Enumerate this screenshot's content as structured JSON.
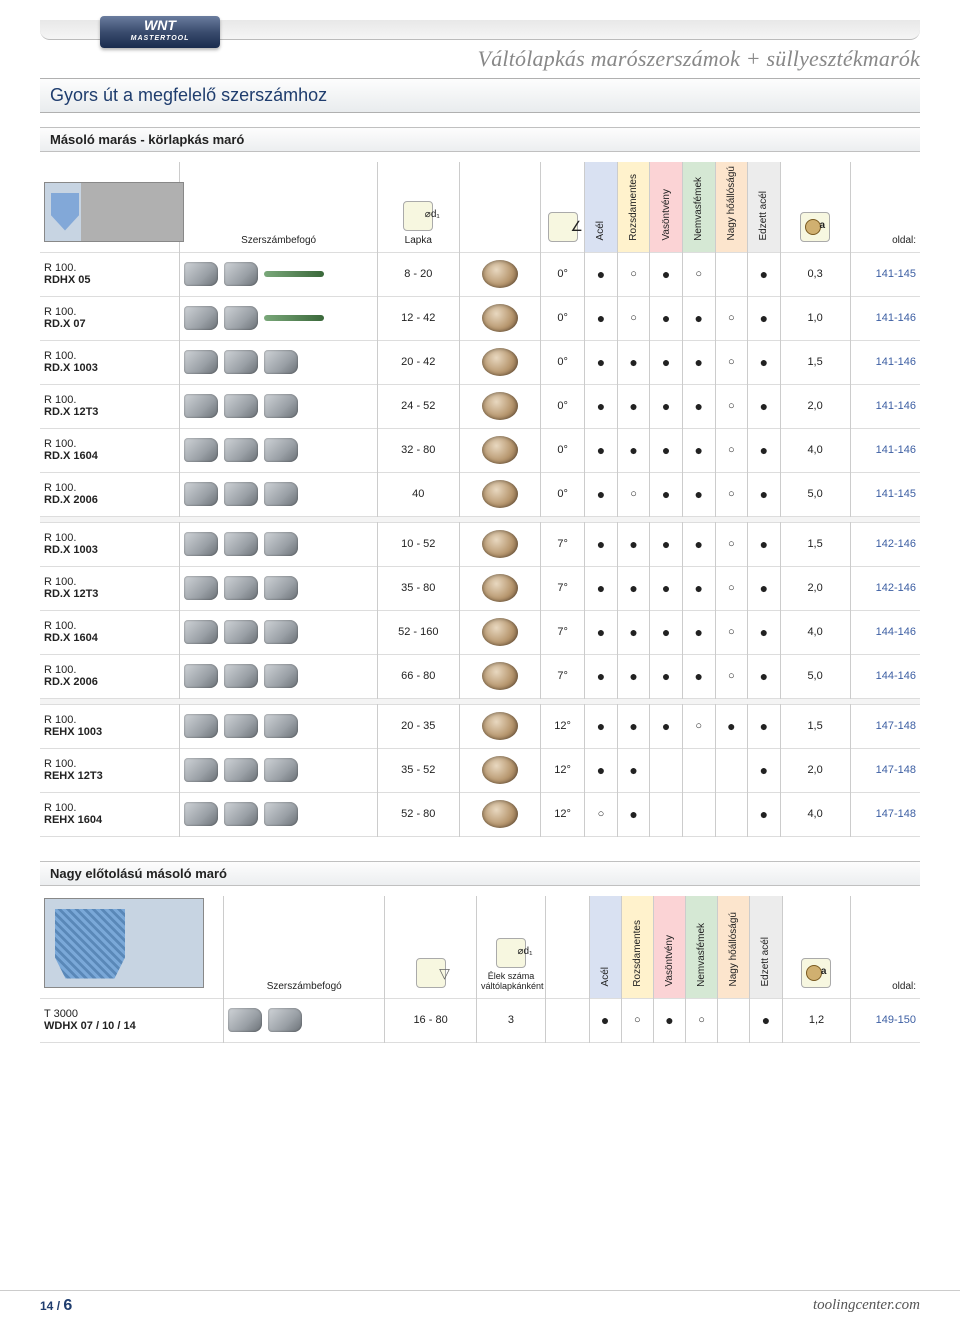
{
  "logo": {
    "line1": "WNT",
    "line2": "MASTERTOOL"
  },
  "header_title": "Váltólapkás marószerszámok + süllyesztékmarók",
  "band_title": "Gyors út a megfelelő szerszámhoz",
  "section1": {
    "title": "Másoló marás - körlapkás maró",
    "cols": {
      "holder": "Szerszámbefogó",
      "lapka": "Lapka",
      "angle_icon": "angle",
      "m1": "Acél",
      "m2": "Rozsdamentes",
      "m3": "Vasöntvény",
      "m4": "Nemvasfémek",
      "m5": "Nagy hőállóságú",
      "m6": "Edzett acél",
      "a_icon": "a",
      "page": "oldal:"
    },
    "groups": [
      {
        "rows": [
          {
            "l1": "R 100.",
            "l2": "RDHX 05",
            "holder_bars": 1,
            "lapka": "8 - 20",
            "angle": "0°",
            "m": [
              "●",
              "○",
              "●",
              "○",
              "",
              "●"
            ],
            "a": "0,3",
            "page": "141-145"
          },
          {
            "l1": "R 100.",
            "l2": "RD.X 07",
            "holder_bars": 1,
            "lapka": "12 - 42",
            "angle": "0°",
            "m": [
              "●",
              "○",
              "●",
              "●",
              "○",
              "●"
            ],
            "a": "1,0",
            "page": "141-146"
          },
          {
            "l1": "R 100.",
            "l2": "RD.X 1003",
            "holder_bars": 0,
            "lapka": "20 - 42",
            "angle": "0°",
            "m": [
              "●",
              "●",
              "●",
              "●",
              "○",
              "●"
            ],
            "a": "1,5",
            "page": "141-146"
          },
          {
            "l1": "R 100.",
            "l2": "RD.X 12T3",
            "holder_bars": 0,
            "lapka": "24 - 52",
            "angle": "0°",
            "m": [
              "●",
              "●",
              "●",
              "●",
              "○",
              "●"
            ],
            "a": "2,0",
            "page": "141-146"
          },
          {
            "l1": "R 100.",
            "l2": "RD.X 1604",
            "holder_bars": 0,
            "lapka": "32 - 80",
            "angle": "0°",
            "m": [
              "●",
              "●",
              "●",
              "●",
              "○",
              "●"
            ],
            "a": "4,0",
            "page": "141-146"
          },
          {
            "l1": "R 100.",
            "l2": "RD.X 2006",
            "holder_bars": 0,
            "lapka": "40",
            "angle": "0°",
            "m": [
              "●",
              "○",
              "●",
              "●",
              "○",
              "●"
            ],
            "a": "5,0",
            "page": "141-145"
          }
        ]
      },
      {
        "rows": [
          {
            "l1": "R 100.",
            "l2": "RD.X 1003",
            "holder_bars": 0,
            "lapka": "10 - 52",
            "angle": "7°",
            "m": [
              "●",
              "●",
              "●",
              "●",
              "○",
              "●"
            ],
            "a": "1,5",
            "page": "142-146"
          },
          {
            "l1": "R 100.",
            "l2": "RD.X 12T3",
            "holder_bars": 0,
            "lapka": "35 - 80",
            "angle": "7°",
            "m": [
              "●",
              "●",
              "●",
              "●",
              "○",
              "●"
            ],
            "a": "2,0",
            "page": "142-146"
          },
          {
            "l1": "R 100.",
            "l2": "RD.X 1604",
            "holder_bars": 0,
            "lapka": "52 - 160",
            "angle": "7°",
            "m": [
              "●",
              "●",
              "●",
              "●",
              "○",
              "●"
            ],
            "a": "4,0",
            "page": "144-146"
          },
          {
            "l1": "R 100.",
            "l2": "RD.X 2006",
            "holder_bars": 0,
            "lapka": "66 - 80",
            "angle": "7°",
            "m": [
              "●",
              "●",
              "●",
              "●",
              "○",
              "●"
            ],
            "a": "5,0",
            "page": "144-146"
          }
        ]
      },
      {
        "rows": [
          {
            "l1": "R 100.",
            "l2": "REHX 1003",
            "holder_bars": 0,
            "lapka": "20 - 35",
            "angle": "12°",
            "m": [
              "●",
              "●",
              "●",
              "○",
              "●",
              "●"
            ],
            "a": "1,5",
            "page": "147-148"
          },
          {
            "l1": "R 100.",
            "l2": "REHX 12T3",
            "holder_bars": 0,
            "lapka": "35 - 52",
            "angle": "12°",
            "m": [
              "●",
              "●",
              "",
              "",
              "",
              "●"
            ],
            "a": "2,0",
            "page": "147-148"
          },
          {
            "l1": "R 100.",
            "l2": "REHX 1604",
            "holder_bars": 0,
            "lapka": "52 - 80",
            "angle": "12°",
            "m": [
              "○",
              "●",
              "",
              "",
              "",
              "●"
            ],
            "a": "4,0",
            "page": "147-148"
          }
        ]
      }
    ]
  },
  "section2": {
    "title": "Nagy előtolású másoló maró",
    "cols": {
      "holder": "Szerszámbefogó",
      "lapka": "Élek száma váltólapkánként",
      "m1": "Acél",
      "m2": "Rozsdamentes",
      "m3": "Vasöntvény",
      "m4": "Nemvasfémek",
      "m5": "Nagy hőállóságú",
      "m6": "Edzett acél",
      "page": "oldal:"
    },
    "rows": [
      {
        "l1": "T 3000",
        "l2": "WDHX 07 / 10 / 14",
        "lapka": "16 - 80",
        "edges": "3",
        "m": [
          "●",
          "○",
          "●",
          "○",
          "",
          "●"
        ],
        "a": "1,2",
        "page": "149-150"
      }
    ]
  },
  "footer": {
    "page_small": "14",
    "sep": " / ",
    "page_big": "6",
    "url": "toolingcenter.com"
  }
}
